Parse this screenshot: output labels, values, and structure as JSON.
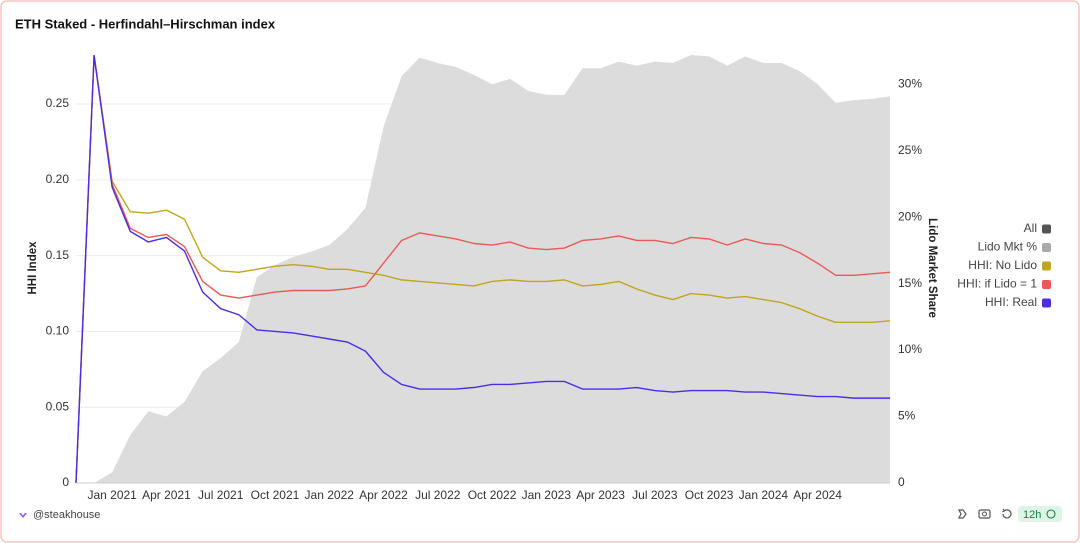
{
  "chart_data": {
    "type": "line",
    "title": "ETH Staked - Herfindahl–Hirschman index",
    "ylabel": "HHI Index",
    "y2label": "Lido Market Share",
    "legend_toggle": "All",
    "legend_toggle_color": "#555555",
    "watermark": "@steakhouse",
    "refresh": "12h",
    "categories": [
      null,
      null,
      "Jan 2021",
      null,
      null,
      "Apr 2021",
      null,
      null,
      "Jul 2021",
      null,
      null,
      "Oct 2021",
      null,
      null,
      "Jan 2022",
      null,
      null,
      "Apr 2022",
      null,
      null,
      "Jul 2022",
      null,
      null,
      "Oct 2022",
      null,
      null,
      "Jan 2023",
      null,
      null,
      "Apr 2023",
      null,
      null,
      "Jul 2023",
      null,
      null,
      "Oct 2023",
      null,
      null,
      "Jan 2024",
      null,
      null,
      "Apr 2024",
      null,
      null,
      null,
      null
    ],
    "ylim": [
      0,
      0.285
    ],
    "yticks": [
      0,
      0.05,
      {
        "value": 0.1,
        "label": "0.10"
      },
      0.15,
      {
        "value": 0.2,
        "label": "0.20"
      },
      0.25
    ],
    "y2lim": [
      0,
      32.5
    ],
    "y2ticks": [
      0,
      {
        "value": 5,
        "label": "5%"
      },
      {
        "value": 10,
        "label": "10%"
      },
      {
        "value": 15,
        "label": "15%"
      },
      {
        "value": 20,
        "label": "20%"
      },
      {
        "value": 25,
        "label": "25%"
      },
      {
        "value": 30,
        "label": "30%"
      }
    ],
    "grid": true,
    "series": [
      {
        "name": "Lido Mkt %",
        "kind": "area",
        "axis": "y2",
        "color": "#dcdcdc",
        "legend_color": "#aaaaaa",
        "values": [
          0,
          0,
          0.8,
          3.6,
          5.4,
          5.0,
          6.1,
          8.4,
          9.4,
          10.6,
          15.5,
          16.4,
          17.0,
          17.4,
          17.9,
          19.1,
          20.7,
          26.8,
          30.6,
          32.0,
          31.6,
          31.3,
          30.7,
          30.0,
          30.4,
          29.5,
          29.2,
          29.2,
          31.2,
          31.2,
          31.7,
          31.4,
          31.7,
          31.6,
          32.2,
          32.1,
          31.4,
          32.1,
          31.6,
          31.6,
          31.0,
          30.0,
          28.6,
          28.8,
          28.9,
          29.1
        ]
      },
      {
        "name": "HHI: No Lido",
        "kind": "line",
        "color": "#c0a51e",
        "values": [
          0,
          0.282,
          0.199,
          0.179,
          0.178,
          0.18,
          0.174,
          0.149,
          0.14,
          0.139,
          0.141,
          0.143,
          0.144,
          0.143,
          0.141,
          0.141,
          0.139,
          0.137,
          0.134,
          0.133,
          0.132,
          0.131,
          0.13,
          0.133,
          0.134,
          0.133,
          0.133,
          0.134,
          0.13,
          0.131,
          0.133,
          0.128,
          0.124,
          0.121,
          0.125,
          0.124,
          0.122,
          0.123,
          0.121,
          0.119,
          0.115,
          0.11,
          0.106,
          0.106,
          0.106,
          0.107
        ]
      },
      {
        "name": "HHI: if Lido = 1",
        "kind": "line",
        "color": "#e85a55",
        "values": [
          0,
          0.282,
          0.197,
          0.168,
          0.162,
          0.164,
          0.156,
          0.133,
          0.124,
          0.122,
          0.124,
          0.126,
          0.127,
          0.127,
          0.127,
          0.128,
          0.13,
          0.145,
          0.16,
          0.165,
          0.163,
          0.161,
          0.158,
          0.157,
          0.159,
          0.155,
          0.154,
          0.155,
          0.16,
          0.161,
          0.163,
          0.16,
          0.16,
          0.158,
          0.162,
          0.161,
          0.157,
          0.161,
          0.158,
          0.157,
          0.152,
          0.145,
          0.137,
          0.137,
          0.138,
          0.139
        ]
      },
      {
        "name": "HHI: Real",
        "kind": "line",
        "color": "#4a2ee6",
        "values": [
          0,
          0.282,
          0.195,
          0.166,
          0.159,
          0.162,
          0.153,
          0.126,
          0.115,
          0.111,
          0.101,
          0.1,
          0.099,
          0.097,
          0.095,
          0.093,
          0.087,
          0.073,
          0.065,
          0.062,
          0.062,
          0.062,
          0.063,
          0.065,
          0.065,
          0.066,
          0.067,
          0.067,
          0.062,
          0.062,
          0.062,
          0.063,
          0.061,
          0.06,
          0.061,
          0.061,
          0.061,
          0.06,
          0.06,
          0.059,
          0.058,
          0.057,
          0.057,
          0.056,
          0.056,
          0.056
        ]
      }
    ]
  }
}
